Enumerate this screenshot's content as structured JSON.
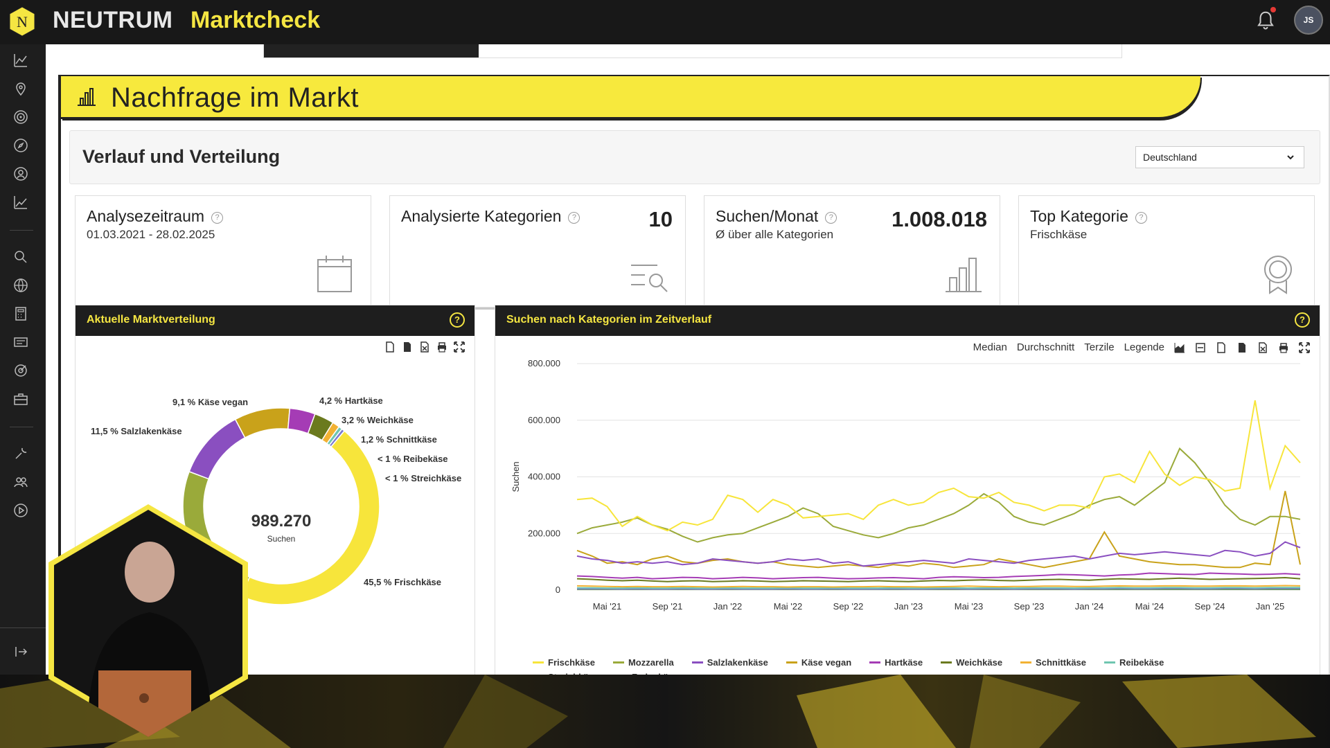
{
  "header": {
    "brand": "NEUTRUM",
    "app_title": "Marktcheck",
    "logo_letter": "N",
    "avatar_initials": "JS",
    "accent": "#f5e642"
  },
  "sidebar": {
    "icons": [
      "analytics-icon",
      "location-pin-icon",
      "target-icon",
      "compass-icon",
      "person-search-icon",
      "trend-icon",
      "search-icon",
      "globe-icon",
      "calculator-icon",
      "list-card-icon",
      "target-small-icon",
      "briefcase-icon",
      "wrench-icon",
      "users-icon",
      "play-icon",
      "logout-icon"
    ]
  },
  "section": {
    "title": "Nachfrage im Markt"
  },
  "filter": {
    "title": "Verlauf und Verteilung",
    "country": "Deutschland"
  },
  "kpis": [
    {
      "title": "Analysezeitraum",
      "sub": "01.03.2021 - 28.02.2025",
      "value": ""
    },
    {
      "title": "Analysierte Kategorien",
      "sub": "",
      "value": "10"
    },
    {
      "title": "Suchen/Monat",
      "sub": "Ø über alle Kategorien",
      "value": "1.008.018"
    },
    {
      "title": "Top Kategorie",
      "sub": "Frischkäse",
      "value": ""
    }
  ],
  "donut_panel": {
    "title": "Aktuelle Marktverteilung",
    "center_value": "989.270",
    "center_label": "Suchen",
    "labels": [
      "4,2 % Hartkäse",
      "3,2 % Weichkäse",
      "1,2 % Schnittkäse",
      "< 1 % Reibekäse",
      "< 1 % Streichkäse",
      "45,5 % Frischkäse",
      "9,1 % Käse vegan",
      "11,5 % Salzlakenkäse"
    ]
  },
  "line_panel": {
    "title": "Suchen nach Kategorien im Zeitverlauf",
    "toolbar": {
      "median": "Median",
      "average": "Durchschnitt",
      "tercile": "Terzile",
      "legend": "Legende"
    }
  },
  "chart_data": [
    {
      "type": "pie",
      "title": "Aktuelle Marktverteilung",
      "total": 989270,
      "slices": [
        {
          "name": "Frischkäse",
          "value": 45.5,
          "color": "#f7e53b"
        },
        {
          "name": "Mozzarella",
          "value": 24.0,
          "color": "#9aaa3a"
        },
        {
          "name": "Salzlakenkäse",
          "value": 11.5,
          "color": "#8a4fc0"
        },
        {
          "name": "Käse vegan",
          "value": 9.1,
          "color": "#c9a21a"
        },
        {
          "name": "Hartkäse",
          "value": 4.2,
          "color": "#a53cb5"
        },
        {
          "name": "Weichkäse",
          "value": 3.2,
          "color": "#6b7a1e"
        },
        {
          "name": "Schnittkäse",
          "value": 1.2,
          "color": "#f2b233"
        },
        {
          "name": "Reibekäse",
          "value": 0.6,
          "color": "#6fc6b0"
        },
        {
          "name": "Streichkäse",
          "value": 0.5,
          "color": "#7b7bd0"
        }
      ]
    },
    {
      "type": "line",
      "title": "Suchen nach Kategorien im Zeitverlauf",
      "ylabel": "Suchen",
      "ylim": [
        0,
        800000
      ],
      "yticks": [
        "800.000",
        "600.000",
        "400.000",
        "200.000",
        "0"
      ],
      "xticks": [
        "Mai '21",
        "Sep '21",
        "Jan '22",
        "Mai '22",
        "Sep '22",
        "Jan '23",
        "Mai '23",
        "Sep '23",
        "Jan '24",
        "Mai '24",
        "Sep '24",
        "Jan '25"
      ],
      "series": [
        {
          "name": "Frischkäse",
          "color": "#f7e53b",
          "values": [
            320000,
            325000,
            295000,
            225000,
            260000,
            230000,
            210000,
            240000,
            230000,
            250000,
            335000,
            320000,
            275000,
            320000,
            300000,
            255000,
            260000,
            265000,
            270000,
            250000,
            300000,
            320000,
            300000,
            310000,
            345000,
            360000,
            330000,
            325000,
            345000,
            310000,
            300000,
            280000,
            300000,
            300000,
            290000,
            400000,
            410000,
            380000,
            490000,
            410000,
            370000,
            400000,
            390000,
            350000,
            360000,
            670000,
            360000,
            510000,
            450000
          ]
        },
        {
          "name": "Mozzarella",
          "color": "#9aaa3a",
          "values": [
            200000,
            220000,
            230000,
            240000,
            255000,
            230000,
            215000,
            190000,
            170000,
            185000,
            195000,
            200000,
            220000,
            240000,
            260000,
            290000,
            270000,
            225000,
            210000,
            195000,
            185000,
            200000,
            220000,
            230000,
            250000,
            270000,
            300000,
            340000,
            310000,
            260000,
            240000,
            230000,
            250000,
            270000,
            300000,
            320000,
            330000,
            300000,
            340000,
            380000,
            500000,
            450000,
            380000,
            300000,
            250000,
            230000,
            260000,
            260000,
            250000
          ]
        },
        {
          "name": "Salzlakenkäse",
          "color": "#8a4fc0",
          "values": [
            120000,
            110000,
            105000,
            95000,
            100000,
            95000,
            100000,
            90000,
            95000,
            110000,
            105000,
            100000,
            95000,
            100000,
            110000,
            105000,
            110000,
            95000,
            100000,
            85000,
            90000,
            95000,
            100000,
            105000,
            100000,
            95000,
            110000,
            105000,
            100000,
            95000,
            105000,
            110000,
            115000,
            120000,
            110000,
            120000,
            130000,
            125000,
            130000,
            135000,
            130000,
            125000,
            120000,
            140000,
            135000,
            120000,
            130000,
            170000,
            150000
          ]
        },
        {
          "name": "Käse vegan",
          "color": "#c9a21a",
          "values": [
            140000,
            120000,
            95000,
            100000,
            90000,
            110000,
            120000,
            100000,
            95000,
            105000,
            110000,
            100000,
            95000,
            100000,
            90000,
            85000,
            80000,
            85000,
            90000,
            85000,
            80000,
            90000,
            85000,
            95000,
            90000,
            80000,
            85000,
            90000,
            110000,
            100000,
            90000,
            80000,
            90000,
            100000,
            110000,
            205000,
            120000,
            110000,
            100000,
            95000,
            90000,
            90000,
            85000,
            80000,
            80000,
            95000,
            90000,
            350000,
            90000
          ]
        },
        {
          "name": "Hartkäse",
          "color": "#a53cb5",
          "values": [
            50000,
            48000,
            45000,
            42000,
            45000,
            40000,
            42000,
            45000,
            44000,
            40000,
            42000,
            45000,
            43000,
            40000,
            42000,
            44000,
            45000,
            42000,
            40000,
            41000,
            43000,
            44000,
            42000,
            40000,
            45000,
            47000,
            46000,
            44000,
            45000,
            48000,
            50000,
            52000,
            55000,
            54000,
            52000,
            50000,
            53000,
            55000,
            60000,
            58000,
            56000,
            55000,
            60000,
            58000,
            57000,
            55000,
            56000,
            58000,
            55000
          ]
        },
        {
          "name": "Weichkäse",
          "color": "#6b7a1e",
          "values": [
            40000,
            38000,
            35000,
            33000,
            35000,
            32000,
            30000,
            32000,
            33000,
            30000,
            31000,
            33000,
            32000,
            30000,
            31000,
            33000,
            32000,
            31000,
            30000,
            32000,
            33000,
            31000,
            30000,
            32000,
            34000,
            33000,
            35000,
            36000,
            34000,
            33000,
            35000,
            37000,
            38000,
            36000,
            35000,
            38000,
            40000,
            39000,
            38000,
            40000,
            42000,
            40000,
            38000,
            39000,
            40000,
            41000,
            42000,
            44000,
            40000
          ]
        },
        {
          "name": "Schnittkäse",
          "color": "#f2b233",
          "values": [
            15000,
            14000,
            13000,
            12000,
            13000,
            12000,
            12000,
            13000,
            12000,
            11000,
            12000,
            13000,
            12000,
            12000,
            11000,
            12000,
            12000,
            11000,
            12000,
            12000,
            13000,
            12000,
            12000,
            11000,
            12000,
            13000,
            14000,
            13000,
            12000,
            13000,
            13000,
            14000,
            14000,
            13000,
            13000,
            14000,
            15000,
            14000,
            14000,
            15000,
            15000,
            14000,
            14000,
            15000,
            15000,
            14000,
            15000,
            16000,
            15000
          ]
        },
        {
          "name": "Reibekäse",
          "color": "#6fc6b0",
          "values": [
            8000,
            8000,
            7000,
            7000,
            8000,
            7000,
            7000,
            8000,
            7000,
            7000,
            8000,
            7000,
            7000,
            7000,
            8000,
            7000,
            7000,
            8000,
            7000,
            7000,
            7000,
            8000,
            7000,
            7000,
            8000,
            8000,
            7000,
            8000,
            8000,
            7000,
            8000,
            8000,
            8000,
            7000,
            8000,
            8000,
            9000,
            8000,
            8000,
            9000,
            9000,
            8000,
            8000,
            9000,
            9000,
            8000,
            9000,
            9000,
            9000
          ]
        },
        {
          "name": "Streichkäse",
          "color": "#7b7bd0",
          "values": [
            5000,
            5000,
            5000,
            4000,
            5000,
            4000,
            4000,
            5000,
            4000,
            4000,
            5000,
            4000,
            4000,
            4000,
            5000,
            4000,
            4000,
            5000,
            4000,
            4000,
            4000,
            5000,
            4000,
            4000,
            5000,
            5000,
            4000,
            5000,
            5000,
            4000,
            5000,
            5000,
            5000,
            4000,
            5000,
            5000,
            6000,
            5000,
            5000,
            6000,
            6000,
            5000,
            5000,
            6000,
            6000,
            5000,
            6000,
            6000,
            6000
          ]
        },
        {
          "name": "Fadenkäse",
          "color": "#4e8a3a",
          "values": [
            3000,
            3000,
            3000,
            3000,
            3000,
            3000,
            3000,
            3000,
            3000,
            3000,
            3000,
            3000,
            3000,
            3000,
            3000,
            3000,
            3000,
            3000,
            3000,
            3000,
            3000,
            3000,
            3000,
            3000,
            3000,
            3000,
            3000,
            3000,
            3000,
            3000,
            3000,
            3000,
            3000,
            3000,
            3000,
            3000,
            3000,
            3000,
            3000,
            3000,
            3000,
            3000,
            3000,
            3000,
            3000,
            3000,
            3000,
            3000,
            3000
          ]
        }
      ]
    }
  ]
}
